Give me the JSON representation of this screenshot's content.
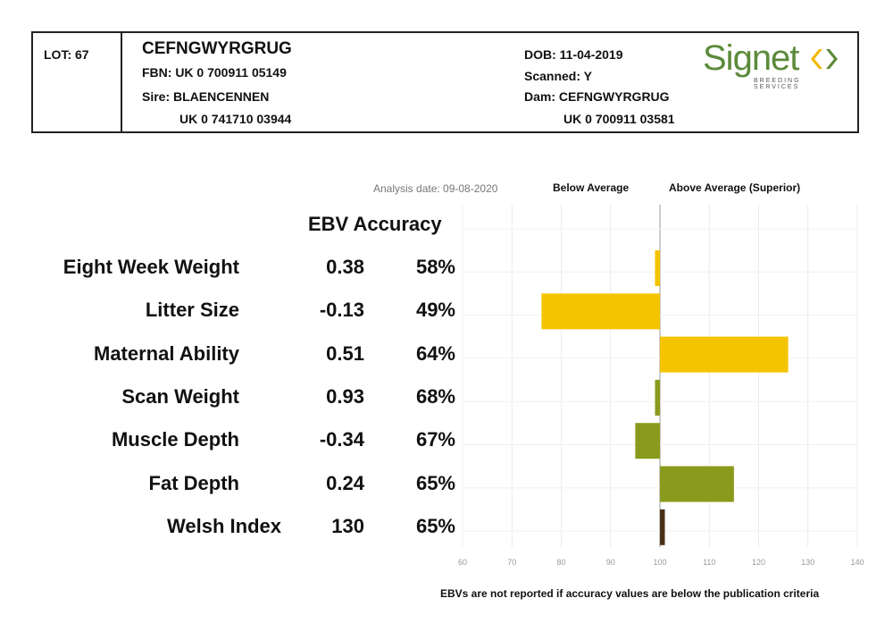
{
  "header": {
    "lot": "LOT: 67",
    "name": "CEFNGWYRGRUG",
    "fbn": "FBN: UK 0 700911 05149",
    "sire": "Sire: BLAENCENNEN",
    "sire_id": "UK 0 741710 03944",
    "dob": "DOB: 11-04-2019",
    "scanned": "Scanned: Y",
    "dam": "Dam: CEFNGWYRGRUG",
    "dam_id": "UK 0 700911 03581",
    "logo_text": "Signet",
    "logo_sub": "BREEDING SERVICES"
  },
  "analysis_date": "Analysis date: 09-08-2020",
  "below_label": "Below Average",
  "above_label": "Above Average (Superior)",
  "ebv_heading": "EBV Accuracy",
  "footnote": "EBVs are not reported if accuracy values are below the publication criteria",
  "colors": {
    "yellow": "#f5c400",
    "green": "#8a9a1c",
    "brown": "#4a3018",
    "logo_green": "#5c8a3a",
    "logo_yellow": "#f2b800"
  },
  "chart_data": {
    "type": "bar",
    "orientation": "horizontal",
    "xlim": [
      60,
      140
    ],
    "baseline": 100,
    "xticks": [
      "60",
      "70",
      "80",
      "90",
      "100",
      "110",
      "120",
      "130",
      "140"
    ],
    "grid": true,
    "rows": [
      {
        "trait": "Eight Week Weight",
        "ebv": "0.38",
        "accuracy": "58%",
        "value": 99,
        "color": "yellow"
      },
      {
        "trait": "Litter Size",
        "ebv": "-0.13",
        "accuracy": "49%",
        "value": 76,
        "color": "yellow"
      },
      {
        "trait": "Maternal Ability",
        "ebv": "0.51",
        "accuracy": "64%",
        "value": 126,
        "color": "yellow"
      },
      {
        "trait": "Scan Weight",
        "ebv": "0.93",
        "accuracy": "68%",
        "value": 99,
        "color": "green"
      },
      {
        "trait": "Muscle Depth",
        "ebv": "-0.34",
        "accuracy": "67%",
        "value": 95,
        "color": "green"
      },
      {
        "trait": "Fat Depth",
        "ebv": "0.24",
        "accuracy": "65%",
        "value": 115,
        "color": "green"
      },
      {
        "trait": "Welsh Index",
        "ebv": "130",
        "accuracy": "65%",
        "value": 101,
        "color": "brown"
      }
    ]
  }
}
